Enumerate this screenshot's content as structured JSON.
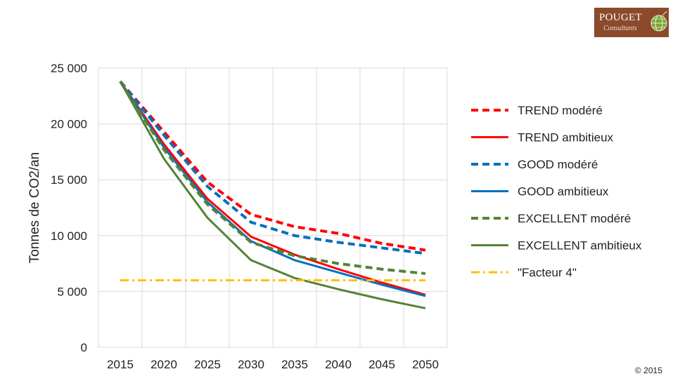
{
  "logo": {
    "name": "POUGET",
    "subtitle": "Consultants",
    "icon": "globe-icon"
  },
  "copyright": "© 2015",
  "chart_data": {
    "type": "line",
    "ylabel": "Tonnes de CO2/an",
    "xlabel": "",
    "x": [
      "2015",
      "2020",
      "2025",
      "2030",
      "2035",
      "2040",
      "2045",
      "2050"
    ],
    "ylim": [
      0,
      25000
    ],
    "y_ticks": [
      0,
      5000,
      10000,
      15000,
      20000,
      25000
    ],
    "y_tick_labels": [
      "0",
      "5 000",
      "10 000",
      "15 000",
      "20 000",
      "25 000"
    ],
    "grid": true,
    "legend_position": "right",
    "series": [
      {
        "name": "TREND modéré",
        "color": "#ff0000",
        "dash": "dashed",
        "values": [
          23800,
          19300,
          14800,
          11900,
          10800,
          10200,
          9300,
          8700
        ]
      },
      {
        "name": "TREND ambitieux",
        "color": "#ff0000",
        "dash": "solid",
        "values": [
          23800,
          18200,
          13300,
          9900,
          8300,
          7000,
          5800,
          4700
        ]
      },
      {
        "name": "GOOD modéré",
        "color": "#0070c0",
        "dash": "dashed",
        "values": [
          23800,
          19000,
          14400,
          11200,
          10000,
          9400,
          8900,
          8400
        ]
      },
      {
        "name": "GOOD ambitieux",
        "color": "#0070c0",
        "dash": "solid",
        "values": [
          23800,
          17900,
          13000,
          9500,
          7800,
          6700,
          5600,
          4600
        ]
      },
      {
        "name": "EXCELLENT modéré",
        "color": "#548235",
        "dash": "dashed",
        "values": [
          23800,
          17700,
          12800,
          9400,
          8200,
          7500,
          7000,
          6600
        ]
      },
      {
        "name": "EXCELLENT ambitieux",
        "color": "#548235",
        "dash": "solid",
        "values": [
          23800,
          16900,
          11600,
          7800,
          6200,
          5200,
          4300,
          3500
        ]
      },
      {
        "name": "\"Facteur 4\"",
        "color": "#ffc000",
        "dash": "dashdot",
        "values": [
          6000,
          6000,
          6000,
          6000,
          6000,
          6000,
          6000,
          6000
        ]
      }
    ]
  }
}
